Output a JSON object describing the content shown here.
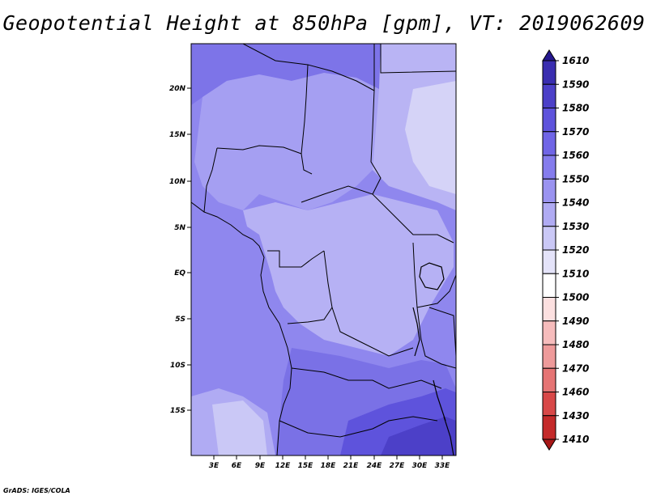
{
  "title": "Geopotential Height at 850hPa [gpm], VT: 2019062609",
  "footer": "GrADS: IGES/COLA",
  "map": {
    "lat_labels": [
      "20N",
      "15N",
      "10N",
      "5N",
      "EQ",
      "5S",
      "10S",
      "15S"
    ],
    "lon_labels": [
      "3E",
      "6E",
      "9E",
      "12E",
      "15E",
      "18E",
      "21E",
      "24E",
      "27E",
      "30E",
      "33E"
    ]
  },
  "colorbar": {
    "levels": [
      "1610",
      "1590",
      "1580",
      "1570",
      "1560",
      "1550",
      "1540",
      "1530",
      "1520",
      "1510",
      "1500",
      "1490",
      "1480",
      "1470",
      "1460",
      "1430",
      "1410"
    ],
    "colors": [
      "#26188f",
      "#3a2eb0",
      "#4c40c8",
      "#5e53dc",
      "#7065e6",
      "#857ced",
      "#9a93f0",
      "#b0abf3",
      "#cac8f6",
      "#e4e3f9",
      "#ffffff",
      "#fce0e0",
      "#f6bcbc",
      "#ee9a9a",
      "#e57474",
      "#d84848",
      "#c42a2a",
      "#a81818"
    ]
  }
}
